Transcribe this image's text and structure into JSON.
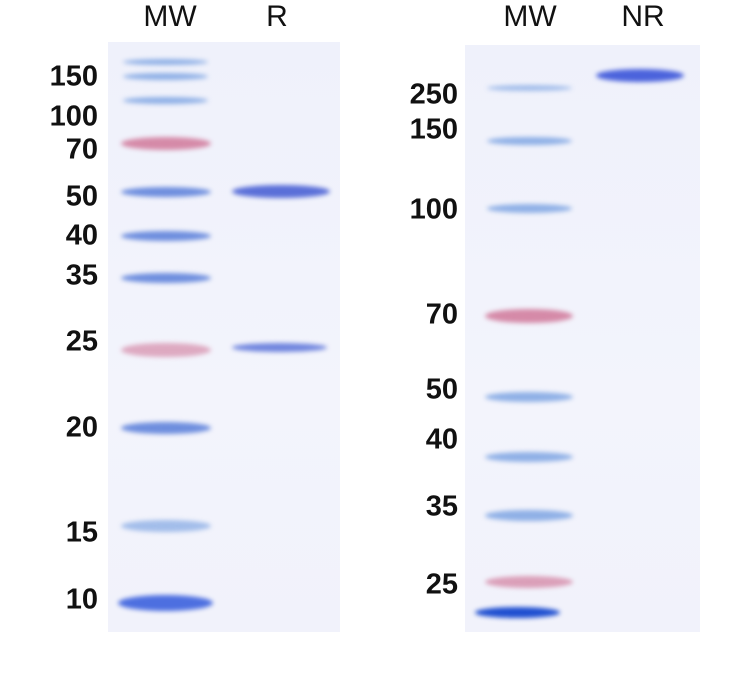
{
  "left_gel": {
    "lane_headers": [
      "MW",
      "R"
    ],
    "marker_labels": [
      "150",
      "100",
      "70",
      "50",
      "40",
      "35",
      "25",
      "20",
      "15",
      "10"
    ],
    "sample_bands_kda": [
      50,
      25
    ]
  },
  "right_gel": {
    "lane_headers": [
      "MW",
      "NR"
    ],
    "marker_labels": [
      "250",
      "150",
      "100",
      "70",
      "50",
      "40",
      "35",
      "25"
    ],
    "sample_bands_kda": [
      250
    ]
  },
  "colors": {
    "marker_blue": "#6e8ede",
    "marker_pink": "#d58aa8",
    "sample_band": "#5a6fd8",
    "gel_background": "#eff1fb"
  }
}
